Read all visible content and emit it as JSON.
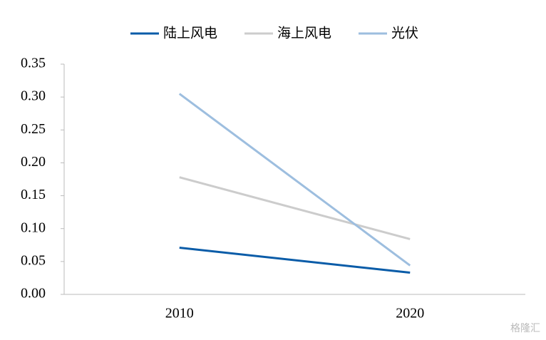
{
  "chart_data": {
    "type": "line",
    "categories": [
      "2010",
      "2020"
    ],
    "series": [
      {
        "name": "陆上风电",
        "color": "#0a5ca8",
        "values": [
          0.071,
          0.033
        ]
      },
      {
        "name": "海上风电",
        "color": "#cccccc",
        "values": [
          0.178,
          0.084
        ]
      },
      {
        "name": "光伏",
        "color": "#9dbedf",
        "values": [
          0.305,
          0.044
        ]
      }
    ],
    "ylim": [
      0,
      0.35
    ],
    "yticks": [
      {
        "value": 0,
        "label": "0.00"
      },
      {
        "value": 0.05,
        "label": "0.05"
      },
      {
        "value": 0.1,
        "label": "0.10"
      },
      {
        "value": 0.15,
        "label": "0.15"
      },
      {
        "value": 0.2,
        "label": "0.20"
      },
      {
        "value": 0.25,
        "label": "0.25"
      },
      {
        "value": 0.3,
        "label": "0.30"
      },
      {
        "value": 0.35,
        "label": "0.35"
      }
    ],
    "legend": "top",
    "watermark": "格隆汇"
  }
}
